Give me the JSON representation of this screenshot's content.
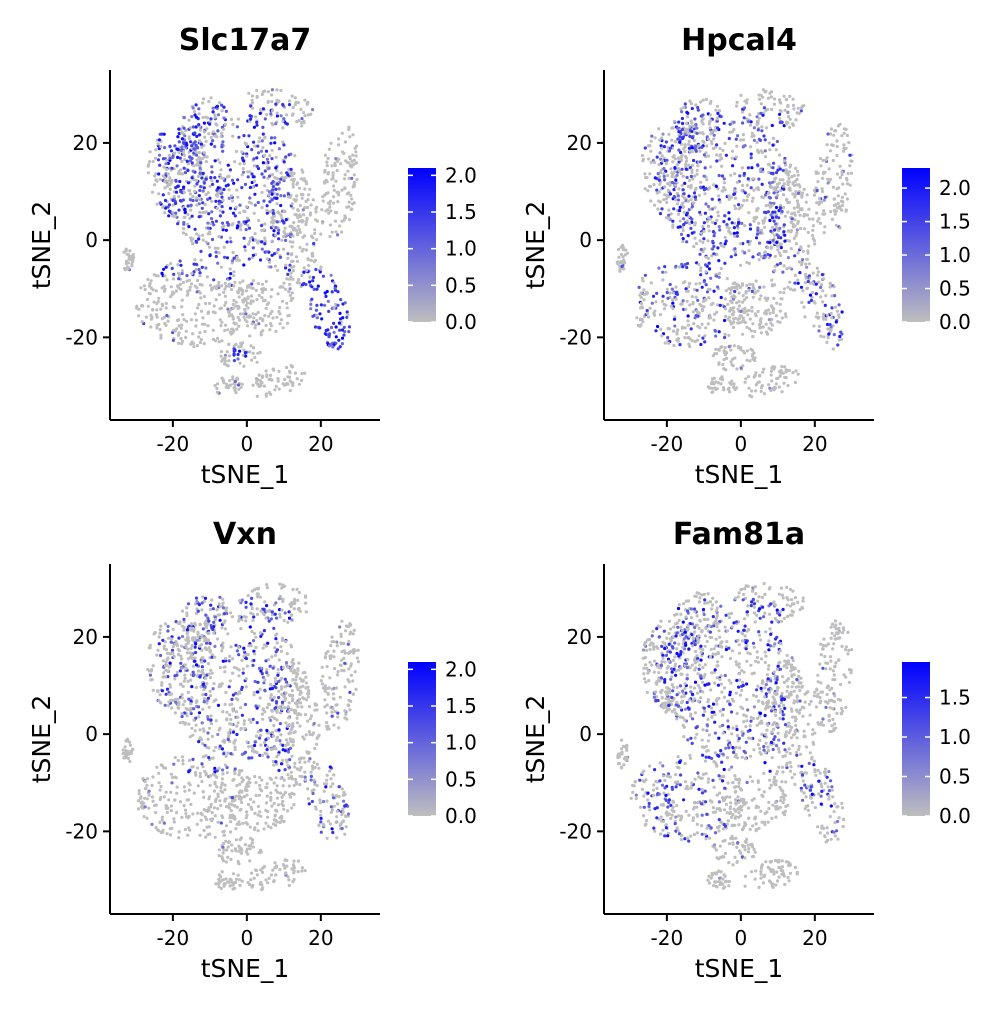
{
  "chart_data": [
    {
      "type": "scatter",
      "title": "Slc17a7",
      "xlabel": "tSNE_1",
      "ylabel": "tSNE_2",
      "xlim": [
        -37,
        36
      ],
      "ylim": [
        -37,
        35
      ],
      "x_ticks": [
        -20,
        0,
        20
      ],
      "y_ticks": [
        -20,
        0,
        20
      ],
      "x_tick_labels": [
        "-20",
        "0",
        "20"
      ],
      "y_tick_labels": [
        "-20",
        "0",
        "20"
      ],
      "legend": {
        "position": "right",
        "range": [
          0,
          2.1
        ],
        "ticks": [
          0.0,
          0.5,
          1.0,
          1.5,
          2.0
        ],
        "tick_labels": [
          "0.0",
          "0.5",
          "1.0",
          "1.5",
          "2.0"
        ]
      },
      "low_color": "#BEBEBE",
      "high_color": "#0000FF",
      "enriched_regions": [
        {
          "label": "upper center cluster",
          "x": [
            -24,
            12
          ],
          "y": [
            -8,
            28
          ],
          "level": 0.55
        },
        {
          "label": "right lower cluster",
          "x": [
            15,
            28
          ],
          "y": [
            -24,
            -6
          ],
          "level": 0.9
        },
        {
          "label": "lower small cluster",
          "x": [
            -4,
            0
          ],
          "y": [
            -25,
            -22
          ],
          "level": 0.7
        }
      ],
      "grid": false
    },
    {
      "type": "scatter",
      "title": "Hpcal4",
      "xlabel": "tSNE_1",
      "ylabel": "tSNE_2",
      "xlim": [
        -37,
        36
      ],
      "ylim": [
        -37,
        35
      ],
      "x_ticks": [
        -20,
        0,
        20
      ],
      "y_ticks": [
        -20,
        0,
        20
      ],
      "x_tick_labels": [
        "-20",
        "0",
        "20"
      ],
      "y_tick_labels": [
        "-20",
        "0",
        "20"
      ],
      "legend": {
        "position": "right",
        "range": [
          0,
          2.3
        ],
        "ticks": [
          0.0,
          0.5,
          1.0,
          1.5,
          2.0
        ],
        "tick_labels": [
          "0.0",
          "0.5",
          "1.0",
          "1.5",
          "2.0"
        ]
      },
      "low_color": "#BEBEBE",
      "high_color": "#0000FF",
      "enriched_regions": [
        {
          "label": "upper center cluster",
          "x": [
            -24,
            12
          ],
          "y": [
            -8,
            28
          ],
          "level": 0.4
        },
        {
          "label": "lower left cluster",
          "x": [
            -28,
            -4
          ],
          "y": [
            -22,
            -4
          ],
          "level": 0.3
        },
        {
          "label": "right lower cluster",
          "x": [
            15,
            28
          ],
          "y": [
            -24,
            -6
          ],
          "level": 0.35
        }
      ],
      "grid": false
    },
    {
      "type": "scatter",
      "title": "Vxn",
      "xlabel": "tSNE_1",
      "ylabel": "tSNE_2",
      "xlim": [
        -37,
        36
      ],
      "ylim": [
        -37,
        35
      ],
      "x_ticks": [
        -20,
        0,
        20
      ],
      "y_ticks": [
        -20,
        0,
        20
      ],
      "x_tick_labels": [
        "-20",
        "0",
        "20"
      ],
      "y_tick_labels": [
        "-20",
        "0",
        "20"
      ],
      "legend": {
        "position": "right",
        "range": [
          0,
          2.1
        ],
        "ticks": [
          0.0,
          0.5,
          1.0,
          1.5,
          2.0
        ],
        "tick_labels": [
          "0.0",
          "0.5",
          "1.0",
          "1.5",
          "2.0"
        ]
      },
      "low_color": "#BEBEBE",
      "high_color": "#0000FF",
      "enriched_regions": [
        {
          "label": "upper center cluster",
          "x": [
            -24,
            12
          ],
          "y": [
            -8,
            28
          ],
          "level": 0.3
        },
        {
          "label": "right lower cluster",
          "x": [
            15,
            28
          ],
          "y": [
            -24,
            -6
          ],
          "level": 0.25
        }
      ],
      "grid": false
    },
    {
      "type": "scatter",
      "title": "Fam81a",
      "xlabel": "tSNE_1",
      "ylabel": "tSNE_2",
      "xlim": [
        -37,
        36
      ],
      "ylim": [
        -37,
        35
      ],
      "x_ticks": [
        -20,
        0,
        20
      ],
      "y_ticks": [
        -20,
        0,
        20
      ],
      "x_tick_labels": [
        "-20",
        "0",
        "20"
      ],
      "y_tick_labels": [
        "-20",
        "0",
        "20"
      ],
      "legend": {
        "position": "right",
        "range": [
          0,
          1.95
        ],
        "ticks": [
          0.0,
          0.5,
          1.0,
          1.5
        ],
        "tick_labels": [
          "0.0",
          "0.5",
          "1.0",
          "1.5"
        ]
      },
      "low_color": "#BEBEBE",
      "high_color": "#0000FF",
      "enriched_regions": [
        {
          "label": "upper center cluster",
          "x": [
            -24,
            12
          ],
          "y": [
            -8,
            28
          ],
          "level": 0.3
        },
        {
          "label": "lower left cluster",
          "x": [
            -28,
            -4
          ],
          "y": [
            -22,
            -4
          ],
          "level": 0.2
        },
        {
          "label": "right lower cluster",
          "x": [
            15,
            28
          ],
          "y": [
            -24,
            -6
          ],
          "level": 0.25
        }
      ],
      "grid": false
    }
  ]
}
